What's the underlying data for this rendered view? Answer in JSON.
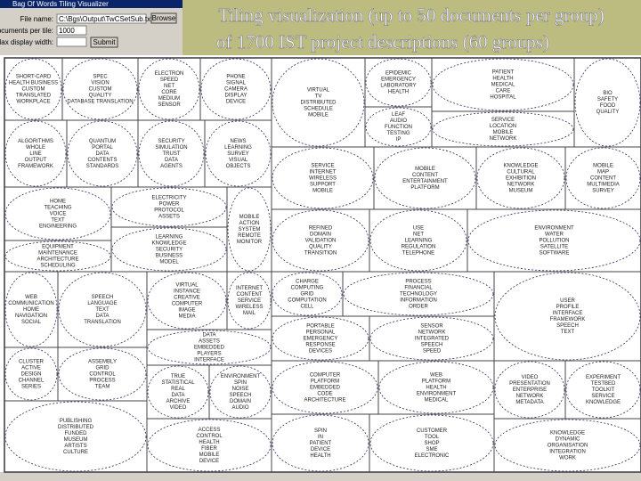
{
  "window": {
    "title": "Bag Of Words Tiling Visualizer"
  },
  "form": {
    "fields": [
      {
        "label": "File name:",
        "value": "C:\\Bgs\\Output\\TwCSetSub.txt"
      },
      {
        "label": "Max documents per tile:",
        "value": "1000"
      },
      {
        "label": "Max display width:"
      }
    ],
    "buttons": [
      "Browse",
      "Submit"
    ]
  },
  "title": {
    "lines": [
      "Tiling visualization (up to 50 documents per group)",
      "of 1700 IST project descriptions (60 groups)"
    ]
  },
  "tiles": [
    {
      "words": [
        "SHORT-CARD",
        "HEALTH BUSINESS",
        "CUSTOM",
        "TRANSLATED",
        "WORKPLACE"
      ]
    },
    {
      "words": [
        "SPEC",
        "VISION",
        "CUSTOM",
        "QUALITY",
        "DATABASE TRANSLATION"
      ]
    },
    {
      "words": [
        "ELECTRON",
        "SPEED",
        "NET",
        "CORE",
        "MEDIUM",
        "SENSOR"
      ]
    },
    {
      "words": [
        "PHONE",
        "SIGNAL",
        "CAMERA",
        "DISPLAY",
        "DEVICE"
      ]
    },
    {
      "words": [
        "ALGORITHMS",
        "WHOLE",
        "LINE",
        "OUTPUT",
        "FRAMEWORK"
      ]
    },
    {
      "words": [
        "QUANTUM",
        "PORTAL",
        "DATA",
        "CONTENTS",
        "STANDARDS"
      ]
    },
    {
      "words": [
        "SECURITY",
        "SIMULATION",
        "TRUST",
        "DATA",
        "AGENTS"
      ]
    },
    {
      "words": [
        "NEWS",
        "LEARNING",
        "SURVEY",
        "VISUAL",
        "OBJECTS"
      ]
    },
    {
      "words": [
        "HOME",
        "TEACHING",
        "VOICE",
        "TEXT",
        "ENGINEERING"
      ]
    },
    {
      "words": [
        "ELECTRICITY",
        "POWER",
        "PROTOCOL",
        "ASSETS"
      ]
    },
    {
      "words": [
        "EQUIPMENT",
        "MAINTENANCE",
        "ARCHITECTURE",
        "SCHEDULING"
      ]
    },
    {
      "words": [
        "LEARNING",
        "KNOWLEDGE",
        "SECURITY",
        "BUSINESS",
        "MODEL"
      ]
    },
    {
      "words": [
        "MOBILE",
        "ACTION",
        "SYSTEM",
        "REMOTE",
        "MONITOR"
      ]
    },
    {
      "words": [
        "WEB",
        "COMMUNICATION",
        "HOME",
        "NAVIGATION",
        "SOCIAL"
      ]
    },
    {
      "words": [
        "SPEECH",
        "LANGUAGE",
        "TEXT",
        "DATA",
        "TRANSLATION"
      ]
    },
    {
      "words": [
        "VIRTUAL",
        "INSTANCE",
        "CREATIVE",
        "COMPUTER",
        "IMAGE",
        "MEDIA"
      ]
    },
    {
      "words": [
        "INTERNET",
        "CONTENT",
        "SERVICE",
        "WIRELESS",
        "MAIL"
      ]
    },
    {
      "words": [
        "DATA",
        "ASSETS",
        "EMBEDDED",
        "PLAYERS",
        "INTERFACE"
      ]
    },
    {
      "words": [
        "CLUSTER",
        "ACTIVE",
        "DESIGN",
        "CHANNEL",
        "SERIES"
      ]
    },
    {
      "words": [
        "ASSEMBLY",
        "GRID",
        "CONTROL",
        "PROCESS",
        "TEAM"
      ]
    },
    {
      "words": [
        "TRUE",
        "STATISTICAL",
        "REAL",
        "DATA",
        "ARCHIVE",
        "VIDEO"
      ]
    },
    {
      "words": [
        "ENVIRONMENT",
        "SPIN",
        "NOISE",
        "SPEECH",
        "DOMAIN",
        "AUDIO"
      ]
    },
    {
      "words": [
        "PUBLISHING",
        "DISTRIBUTED",
        "FUNDED",
        "MUSEUM",
        "ARTISTS",
        "CULTURE"
      ]
    },
    {
      "words": [
        "ACCESS",
        "CONTROL",
        "HEALTH",
        "FIBER",
        "MOBILE",
        "DEVICE"
      ]
    },
    {
      "words": [
        "VIRTUAL",
        "TV",
        "DISTRIBUTED",
        "SCHEDULE",
        "MOBILE"
      ]
    },
    {
      "words": [
        "EPIDEMIC",
        "EMERGENCY",
        "LABORATORY",
        "HEALTH"
      ]
    },
    {
      "words": [
        "LEAF",
        "AUDIO",
        "FUNCTION",
        "TESTING",
        "IP"
      ]
    },
    {
      "words": [
        "PATIENT",
        "HEALTH",
        "MEDICAL",
        "CARE",
        "HOSPITAL"
      ]
    },
    {
      "words": [
        "SERVICE",
        "LOCATION",
        "MOBILE",
        "NETWORK"
      ]
    },
    {
      "words": [
        "BIO",
        "SAFETY",
        "FOOD",
        "QUALITY"
      ]
    },
    {
      "words": [
        "SERVICE",
        "INTERNET",
        "WIRELESS",
        "SUPPORT",
        "MOBILE"
      ]
    },
    {
      "words": [
        "MOBILE",
        "CONTENT",
        "ENTERTAINMENT",
        "PLATFORM"
      ]
    },
    {
      "words": [
        "KNOWLEDGE",
        "CULTURAL",
        "EXHIBITION",
        "NETWORK",
        "MUSEUM"
      ]
    },
    {
      "words": [
        "MOBILE",
        "MAP",
        "CONTENT",
        "MULTIMEDIA",
        "SURVEY"
      ]
    },
    {
      "words": [
        "REFINED",
        "DOMAIN",
        "VALIDATION",
        "QUALITY",
        "TRANSITION"
      ]
    },
    {
      "words": [
        "USE",
        "NET",
        "LEARNING",
        "REGULATION",
        "TELEPHONE"
      ]
    },
    {
      "words": [
        "ENVIRONMENT",
        "WATER",
        "POLLUTION",
        "SATELLITE",
        "SOFTWARE"
      ]
    },
    {
      "words": [
        "CHARGE",
        "COMPUTING",
        "GRID",
        "COMPUTATION",
        "CELL"
      ]
    },
    {
      "words": [
        "PROCESS",
        "FINANCIAL",
        "TECHNOLOGY",
        "INFORMATION",
        "ORDER"
      ]
    },
    {
      "words": [
        "USER",
        "PROFILE",
        "INTERFACE",
        "FRAMEWORK",
        "SPEECH",
        "TEXT"
      ]
    },
    {
      "words": [
        "PORTABLE",
        "PERSONAL",
        "EMERGENCY",
        "RESPONSE",
        "DEVICES"
      ]
    },
    {
      "words": [
        "SENSOR",
        "NETWORK",
        "INTEGRATED",
        "SPEECH",
        "SPEED"
      ]
    },
    {
      "words": [
        "COMPUTER",
        "PLATFORM",
        "EMBEDDED",
        "CODE",
        "ARCHITECTURE"
      ]
    },
    {
      "words": [
        "WEB",
        "PLATFORM",
        "HEALTH",
        "ENVIRONMENT",
        "MEDICAL"
      ]
    },
    {
      "words": [
        "VIDEO",
        "PRESENTATION",
        "ENTERPRISE",
        "NETWORK",
        "METADATA"
      ]
    },
    {
      "words": [
        "EXPERIMENT",
        "TESTBED",
        "TOOLKIT",
        "SERVICE",
        "KNOWLEDGE"
      ]
    },
    {
      "words": [
        "SPIN",
        "IN",
        "PATIENT",
        "DEVICE",
        "HEALTH"
      ]
    },
    {
      "words": [
        "CUSTOMER",
        "TOOL",
        "SHOP",
        "SME",
        "ELECTRONIC"
      ]
    },
    {
      "words": [
        "KNOWLEDGE",
        "DYNAMIC",
        "ORGANISATION",
        "INTEGRATION",
        "WORK"
      ]
    }
  ]
}
